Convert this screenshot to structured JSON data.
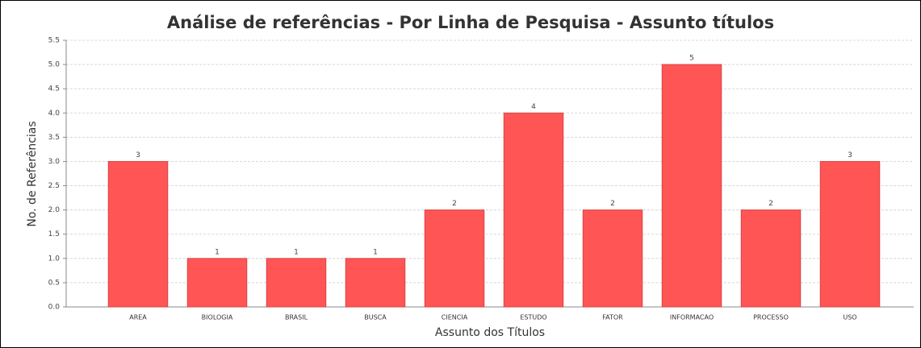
{
  "chart_data": {
    "type": "bar",
    "title": "Análise de referências - Por Linha de Pesquisa - Assunto títulos",
    "x_label": "Assunto dos Títulos",
    "y_label": "No. de Referências",
    "categories": [
      "AREA",
      "BIOLOGIA",
      "BRASIL",
      "BUSCA",
      "CIENCIA",
      "ESTUDO",
      "FATOR",
      "INFORMACAO",
      "PROCESSO",
      "USO"
    ],
    "values": [
      3,
      1,
      1,
      1,
      2,
      4,
      2,
      5,
      2,
      3
    ],
    "color": "#ff5555",
    "ylim": [
      0,
      5.5
    ],
    "yticks": [
      {
        "value": 0,
        "label": "0.0"
      },
      0.5,
      {
        "value": 1,
        "label": "1.0"
      },
      1.5,
      {
        "value": 2,
        "label": "2.0"
      },
      2.5,
      {
        "value": 3,
        "label": "3.0"
      },
      3.5,
      {
        "value": 4,
        "label": "4.0"
      },
      4.5,
      {
        "value": 5,
        "label": "5.0"
      },
      5.5
    ],
    "grid": true
  }
}
